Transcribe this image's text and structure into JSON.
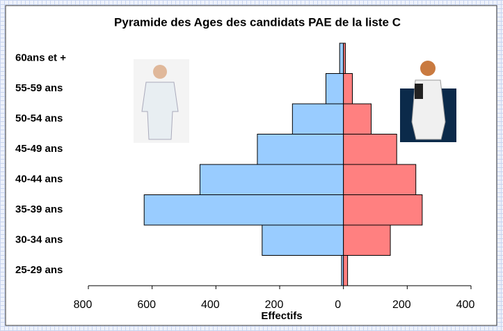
{
  "chart_data": {
    "type": "pyramid",
    "title": "Pyramide des Ages des candidats PAE de la liste C",
    "x_label": "Effectifs",
    "categories": [
      "25-29 ans",
      "30-34 ans",
      "35-39 ans",
      "40-44 ans",
      "45-49 ans",
      "50-54 ans",
      "55-59 ans",
      "60ans et +"
    ],
    "series": [
      {
        "color": "#99ccff",
        "values": [
          -6,
          -255,
          -625,
          -450,
          -270,
          -160,
          -55,
          -12
        ]
      },
      {
        "color": "#ff8080",
        "values": [
          13,
          147,
          247,
          227,
          167,
          87,
          28,
          6
        ]
      }
    ],
    "xlim": [
      -800,
      400
    ],
    "xticks": [
      {
        "value": -800,
        "label": "800"
      },
      {
        "value": -600,
        "label": "600"
      },
      {
        "value": -400,
        "label": "400"
      },
      {
        "value": -200,
        "label": "200"
      },
      0,
      200,
      400
    ]
  }
}
